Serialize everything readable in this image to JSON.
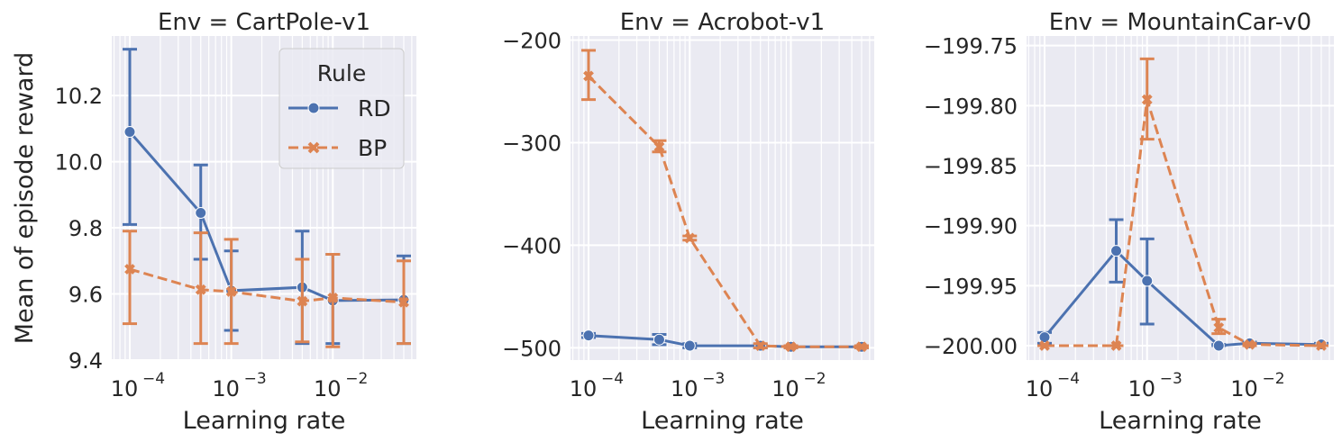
{
  "chart_data": [
    {
      "type": "line",
      "title": "Env = CartPole-v1",
      "xlabel": "Learning rate",
      "ylabel": "Mean of episode reward",
      "xscale": "log",
      "x": [
        0.0001,
        0.0005,
        0.001,
        0.005,
        0.01,
        0.05
      ],
      "xticks": [
        0.0001,
        0.001,
        0.01
      ],
      "xtick_labels": [
        "10",
        "10",
        "10"
      ],
      "xtick_exponents": [
        "−4",
        "−3",
        "−2"
      ],
      "ylim": [
        9.4,
        10.38
      ],
      "yticks": [
        9.4,
        9.6,
        9.8,
        10.0,
        10.2
      ],
      "ytick_labels": [
        "9.4",
        "9.6",
        "9.8",
        "10.0",
        "10.2"
      ],
      "grid": true,
      "legend": {
        "title": "Rule",
        "placement": "top-right"
      },
      "series": [
        {
          "name": "RD",
          "color": "#4c72b0",
          "marker": "circle",
          "linestyle": "solid",
          "values": [
            10.09,
            9.845,
            9.61,
            9.62,
            9.58,
            9.582
          ],
          "err_low": [
            9.81,
            9.705,
            9.49,
            9.45,
            9.45,
            9.45
          ],
          "err_high": [
            10.34,
            9.99,
            9.73,
            9.79,
            9.72,
            9.715
          ]
        },
        {
          "name": "BP",
          "color": "#dd8452",
          "marker": "x",
          "linestyle": "dashed",
          "values": [
            9.675,
            9.613,
            9.607,
            9.578,
            9.588,
            9.575
          ],
          "err_low": [
            9.51,
            9.45,
            9.45,
            9.455,
            9.44,
            9.45
          ],
          "err_high": [
            9.79,
            9.785,
            9.765,
            9.705,
            9.72,
            9.7
          ]
        }
      ]
    },
    {
      "type": "line",
      "title": "Env = Acrobot-v1",
      "xlabel": "Learning rate",
      "xscale": "log",
      "x": [
        0.0001,
        0.0005,
        0.001,
        0.005,
        0.01,
        0.05
      ],
      "xticks": [
        0.0001,
        0.001,
        0.01
      ],
      "xtick_labels": [
        "10",
        "10",
        "10"
      ],
      "xtick_exponents": [
        "−4",
        "−3",
        "−2"
      ],
      "ylim": [
        -512,
        -196
      ],
      "yticks": [
        -500,
        -400,
        -300,
        -200
      ],
      "ytick_labels": [
        "−500",
        "−400",
        "−300",
        "−200"
      ],
      "grid": true,
      "series": [
        {
          "name": "RD",
          "color": "#4c72b0",
          "marker": "circle",
          "linestyle": "solid",
          "values": [
            -488,
            -492,
            -498,
            -498,
            -499,
            -499
          ],
          "err_low": [
            -490,
            -497,
            -500,
            -500,
            -500,
            -500
          ],
          "err_high": [
            -486,
            -487,
            -496,
            -497,
            -498,
            -498
          ]
        },
        {
          "name": "BP",
          "color": "#dd8452",
          "marker": "x",
          "linestyle": "dashed",
          "values": [
            -235,
            -304,
            -393,
            -498,
            -499,
            -499
          ],
          "err_low": [
            -258,
            -309,
            -395,
            -500,
            -500,
            -500
          ],
          "err_high": [
            -210,
            -298,
            -391,
            -496,
            -498,
            -498
          ]
        }
      ]
    },
    {
      "type": "line",
      "title": "Env = MountainCar-v0",
      "xlabel": "Learning rate",
      "xscale": "log",
      "x": [
        0.0001,
        0.0005,
        0.001,
        0.005,
        0.01,
        0.05
      ],
      "xticks": [
        0.0001,
        0.001,
        0.01
      ],
      "xtick_labels": [
        "10",
        "10",
        "10"
      ],
      "xtick_exponents": [
        "−4",
        "−3",
        "−2"
      ],
      "ylim": [
        -200.012,
        -199.742
      ],
      "yticks": [
        -200.0,
        -199.95,
        -199.9,
        -199.85,
        -199.8,
        -199.75
      ],
      "ytick_labels": [
        "−200.00",
        "−199.95",
        "−199.90",
        "−199.85",
        "−199.80",
        "−199.75"
      ],
      "grid": true,
      "series": [
        {
          "name": "RD",
          "color": "#4c72b0",
          "marker": "circle",
          "linestyle": "solid",
          "values": [
            -199.993,
            -199.921,
            -199.946,
            -200.0,
            -199.998,
            -199.999
          ],
          "err_low": [
            -199.998,
            -199.947,
            -199.982,
            -200.0,
            -200.0,
            -200.0
          ],
          "err_high": [
            -199.989,
            -199.895,
            -199.911,
            -199.999,
            -199.997,
            -199.998
          ]
        },
        {
          "name": "BP",
          "color": "#dd8452",
          "marker": "x",
          "linestyle": "dashed",
          "values": [
            -200.0,
            -200.0,
            -199.795,
            -199.985,
            -199.999,
            -200.0
          ],
          "err_low": [
            -200.0,
            -200.0,
            -199.828,
            -199.99,
            -200.0,
            -200.0
          ],
          "err_high": [
            -200.0,
            -200.0,
            -199.761,
            -199.978,
            -199.998,
            -200.0
          ]
        }
      ]
    }
  ]
}
